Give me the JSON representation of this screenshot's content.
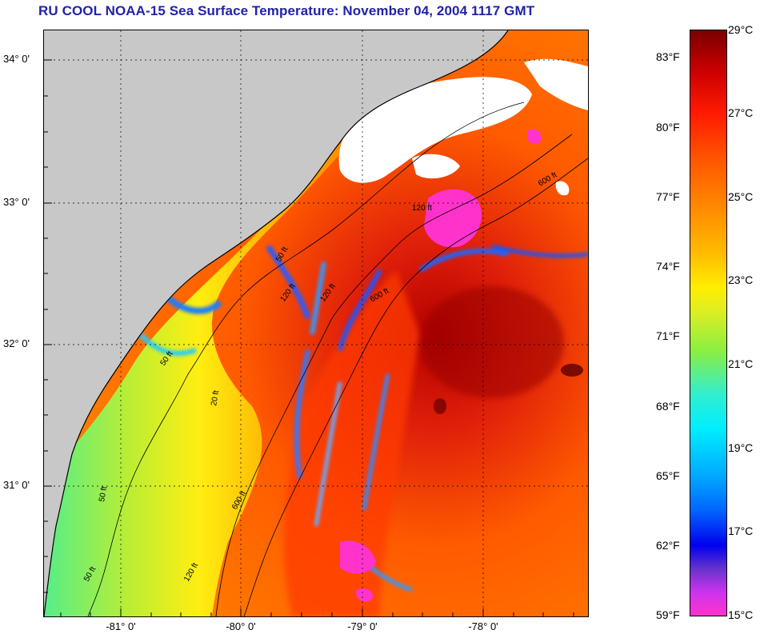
{
  "title": "RU COOL  NOAA-15  Sea Surface Temperature:  November 04, 2004 1117 GMT",
  "latitude_labels": [
    "34° 0'",
    "33° 0'",
    "32° 0'",
    "31° 0'"
  ],
  "longitude_labels": [
    "-81° 0'",
    "-80° 0'",
    "-79° 0'",
    "-78° 0'"
  ],
  "isobath_labels": [
    "50 ft",
    "120 ft",
    "600 ft",
    "600 ft",
    "120 ft",
    "50 ft",
    "120 ft",
    "600 ft",
    "20 ft",
    "50 ft",
    "50 ft",
    "120 ft"
  ],
  "colorbar": {
    "fahrenheit_labels": [
      "83°F",
      "80°F",
      "77°F",
      "74°F",
      "71°F",
      "68°F",
      "65°F",
      "62°F",
      "59°F"
    ],
    "celsius_labels": [
      "29°C",
      "27°C",
      "25°C",
      "23°C",
      "21°C",
      "19°C",
      "17°C",
      "15°C"
    ],
    "range_celsius": [
      15,
      29
    ],
    "colors": [
      "#ff33cc",
      "#6633cc",
      "#0000ee",
      "#00aaff",
      "#00eeff",
      "#88ee44",
      "#ffee00",
      "#ff8800",
      "#ff1a00",
      "#7a0000"
    ]
  },
  "legend_units": [
    "°F",
    "°C"
  ]
}
